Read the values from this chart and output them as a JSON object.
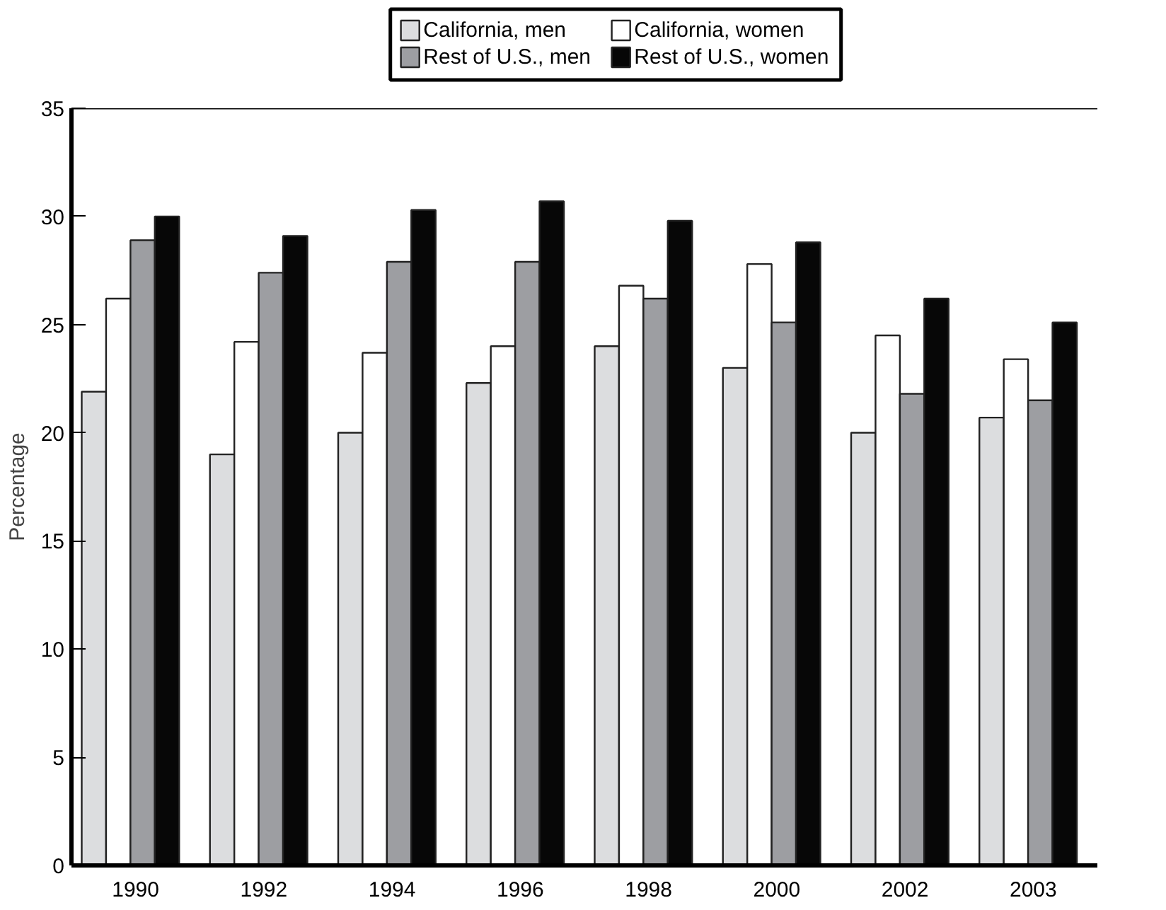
{
  "chart_data": {
    "type": "bar",
    "ylabel": "Percentage",
    "categories": [
      "1990",
      "1992",
      "1994",
      "1996",
      "1998",
      "2000",
      "2002",
      "2003"
    ],
    "series": [
      {
        "name": "California, men",
        "color": "#dcdddf",
        "values": [
          21.9,
          19.0,
          20.0,
          22.3,
          24.0,
          23.0,
          20.0,
          20.7
        ]
      },
      {
        "name": "California, women",
        "color": "#ffffff",
        "values": [
          26.2,
          24.2,
          23.7,
          24.0,
          26.8,
          27.8,
          24.5,
          23.4
        ]
      },
      {
        "name": "Rest of U.S., men",
        "color": "#9d9ea2",
        "values": [
          28.9,
          27.4,
          27.9,
          27.9,
          26.2,
          25.1,
          21.8,
          21.5
        ]
      },
      {
        "name": "Rest of U.S., women",
        "color": "#070707",
        "values": [
          30.0,
          29.1,
          30.3,
          30.7,
          29.8,
          28.8,
          26.2,
          25.1
        ]
      }
    ],
    "ylim": [
      0,
      35
    ],
    "yticks": [
      0,
      5,
      10,
      15,
      20,
      25,
      30,
      35
    ],
    "grid": false,
    "legend": "top"
  }
}
